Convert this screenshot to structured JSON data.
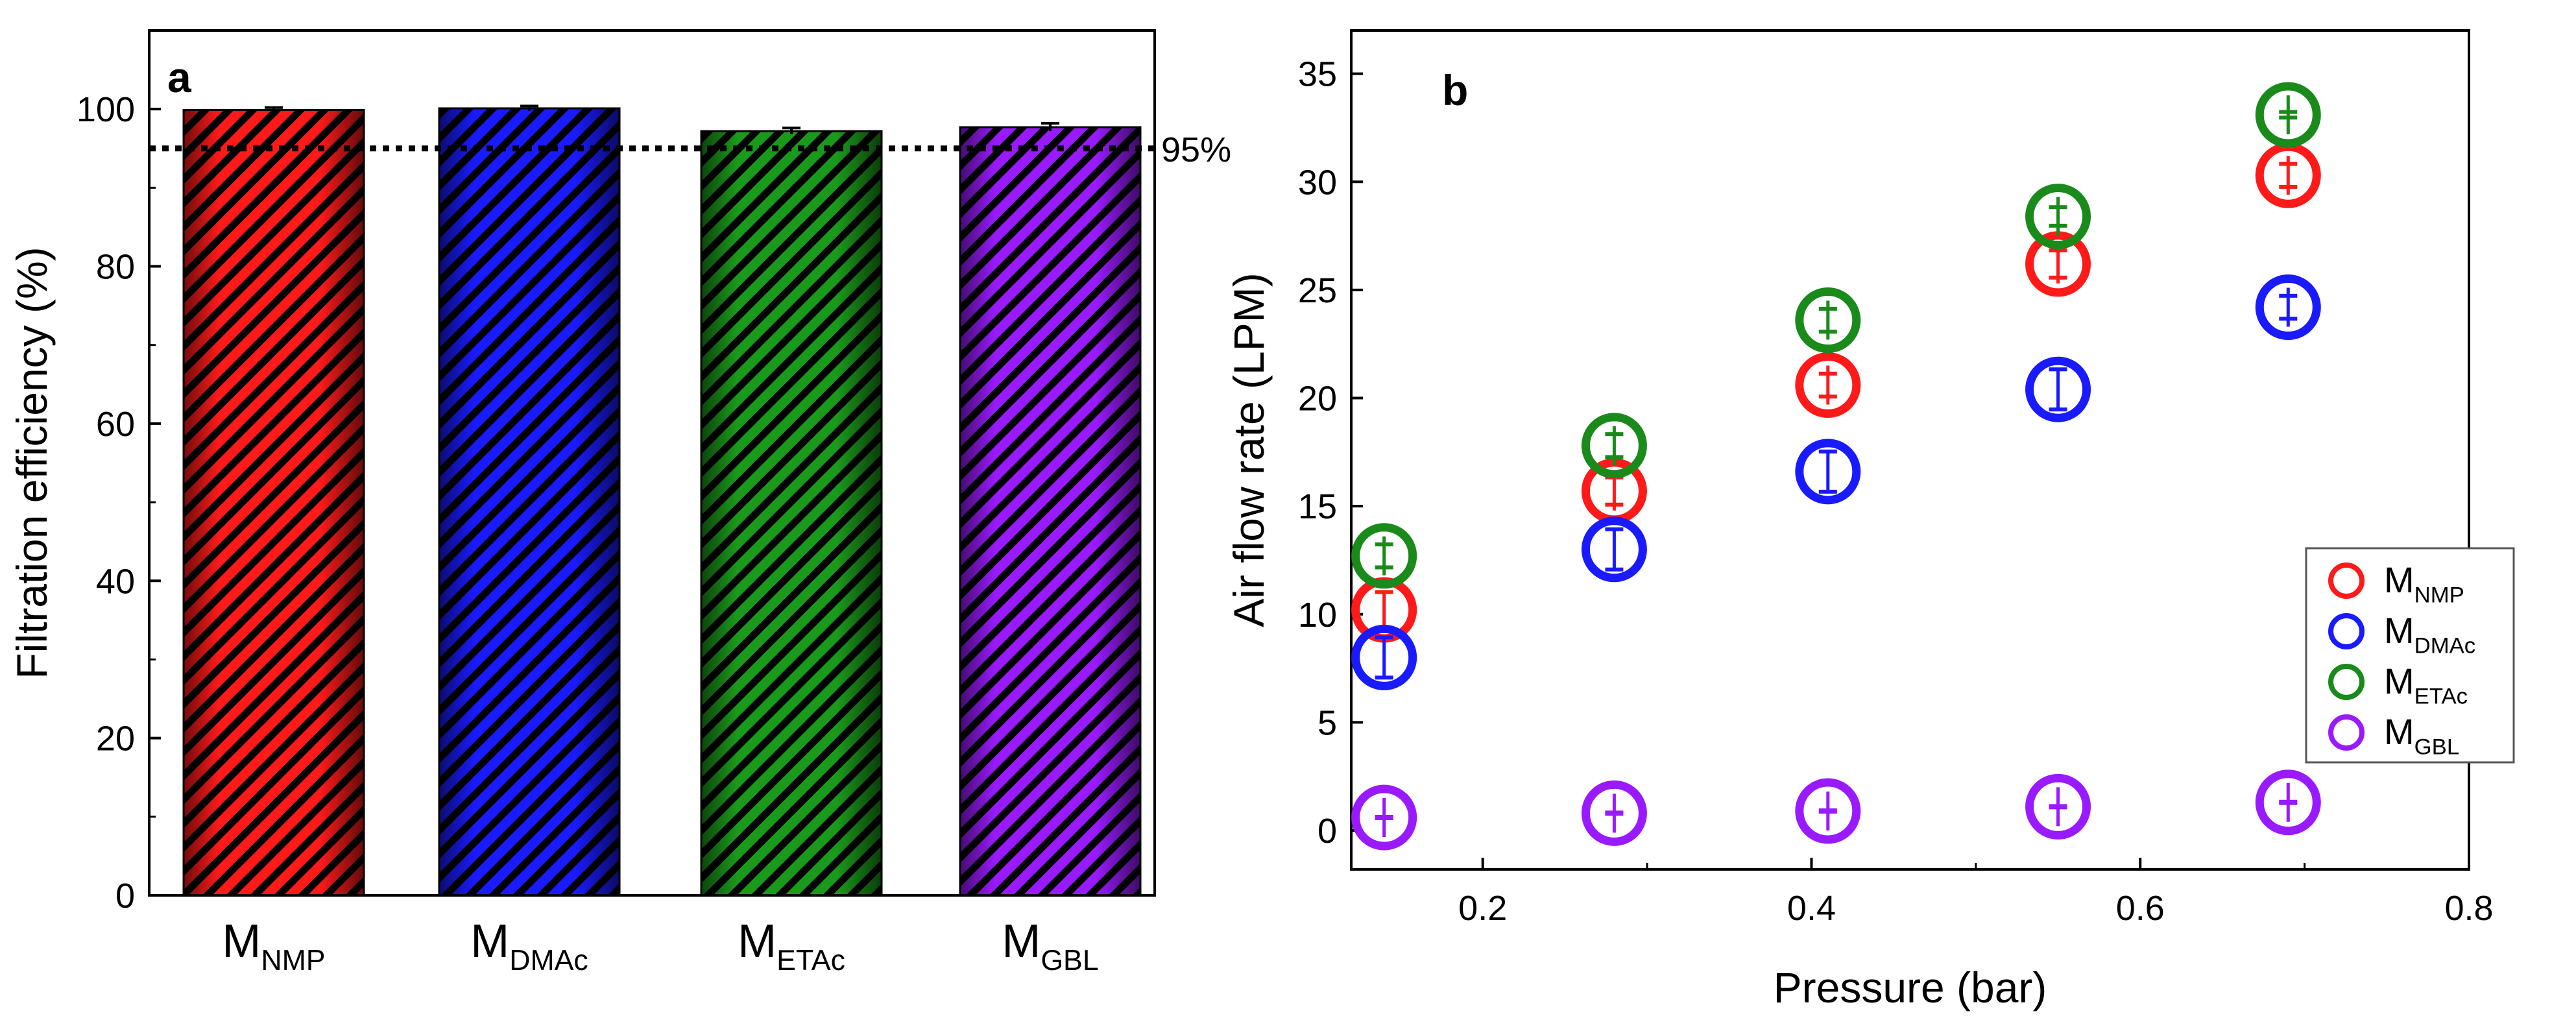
{
  "chart_data": [
    {
      "type": "bar",
      "panel_label": "a",
      "title": "",
      "xlabel": "",
      "ylabel": "Filtration efficiency (%)",
      "ylim": [
        0,
        110
      ],
      "yticks": [
        0,
        20,
        40,
        60,
        80,
        100
      ],
      "categories": [
        {
          "main": "M",
          "sub": "NMP"
        },
        {
          "main": "M",
          "sub": "DMAc"
        },
        {
          "main": "M",
          "sub": "ETAc"
        },
        {
          "main": "M",
          "sub": "GBL"
        }
      ],
      "values": [
        99.9,
        100.1,
        97.2,
        97.7
      ],
      "errors": [
        0.3,
        0.3,
        0.4,
        0.5
      ],
      "colors": [
        "#ff1a1a",
        "#1a1aff",
        "#1a9a1a",
        "#9a1aff"
      ],
      "hatch": "diagonal black stripes",
      "reference_line": {
        "value": 95,
        "label": "95%",
        "style": "dotted"
      },
      "grid": false
    },
    {
      "type": "scatter",
      "panel_label": "b",
      "title": "",
      "xlabel": "Pressure (bar)",
      "ylabel": "Air flow rate (LPM)",
      "xlim": [
        0.12,
        0.8
      ],
      "ylim": [
        -1.8,
        37
      ],
      "xticks": [
        0.2,
        0.4,
        0.6,
        0.8
      ],
      "yticks": [
        0,
        5,
        10,
        15,
        20,
        25,
        30,
        35
      ],
      "x": [
        0.14,
        0.28,
        0.41,
        0.55,
        0.69
      ],
      "series": [
        {
          "main": "M",
          "sub": "NMP",
          "color": "#ff1a1a",
          "values": [
            10.2,
            15.7,
            20.6,
            26.2,
            30.3
          ],
          "errors": [
            0.8,
            0.6,
            0.5,
            0.6,
            0.5
          ]
        },
        {
          "main": "M",
          "sub": "DMAc",
          "color": "#1a1aff",
          "values": [
            8.0,
            13.0,
            16.6,
            20.4,
            24.2
          ],
          "errors": [
            0.9,
            0.9,
            0.9,
            0.9,
            0.5
          ]
        },
        {
          "main": "M",
          "sub": "ETAc",
          "color": "#1a8a1a",
          "values": [
            12.7,
            17.8,
            23.6,
            28.4,
            33.1
          ],
          "errors": [
            0.5,
            0.5,
            0.5,
            0.4,
            0.1
          ]
        },
        {
          "main": "M",
          "sub": "GBL",
          "color": "#9a1aff",
          "values": [
            0.6,
            0.8,
            0.9,
            1.1,
            1.3
          ],
          "errors": [
            0.0,
            0.0,
            0.0,
            0.0,
            0.0
          ]
        }
      ],
      "legend": "center-right",
      "grid": false
    }
  ]
}
